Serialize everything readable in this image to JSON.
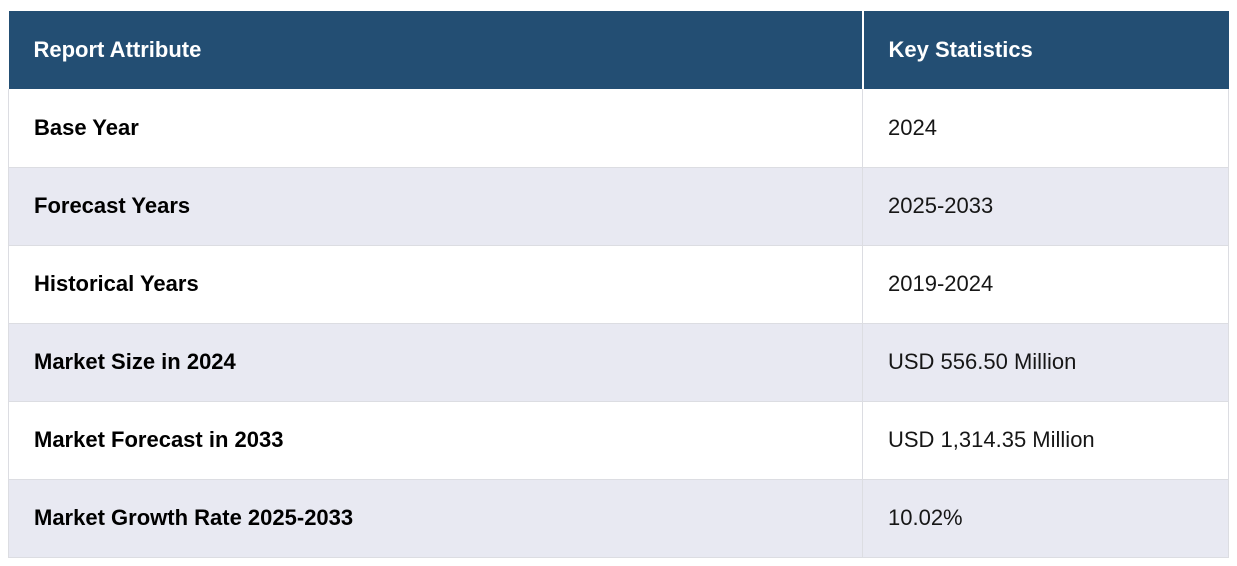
{
  "table": {
    "columns": [
      {
        "label": "Report Attribute"
      },
      {
        "label": "Key Statistics"
      }
    ],
    "rows": [
      {
        "attribute": "Base Year",
        "value": "2024"
      },
      {
        "attribute": "Forecast Years",
        "value": "2025-2033"
      },
      {
        "attribute": "Historical Years",
        "value": "2019-2024"
      },
      {
        "attribute": "Market Size in 2024",
        "value": "USD 556.50 Million"
      },
      {
        "attribute": "Market Forecast in 2033",
        "value": "USD 1,314.35 Million"
      },
      {
        "attribute": "Market Growth Rate 2025-2033",
        "value": "10.02%"
      }
    ]
  },
  "chart_data": {
    "type": "table",
    "columns": [
      "Report Attribute",
      "Key Statistics"
    ],
    "rows": [
      [
        "Base Year",
        "2024"
      ],
      [
        "Forecast Years",
        "2025-2033"
      ],
      [
        "Historical Years",
        "2019-2024"
      ],
      [
        "Market Size in 2024",
        "USD 556.50 Million"
      ],
      [
        "Market Forecast in 2033",
        "USD 1,314.35 Million"
      ],
      [
        "Market Growth Rate 2025-2033",
        "10.02%"
      ]
    ],
    "base_year": 2024,
    "forecast_years_start": 2025,
    "forecast_years_end": 2033,
    "historical_years_start": 2019,
    "historical_years_end": 2024,
    "market_size_2024_usd_million": 556.5,
    "market_forecast_2033_usd_million": 1314.35,
    "market_growth_rate_percent": 10.02
  },
  "colors": {
    "header_bg": "#234e73",
    "header_text": "#ffffff",
    "row_bg": "#ffffff",
    "row_alt_bg": "#e8e9f2",
    "border": "#dcdde2",
    "label_text": "#000000",
    "value_text": "#161616"
  }
}
